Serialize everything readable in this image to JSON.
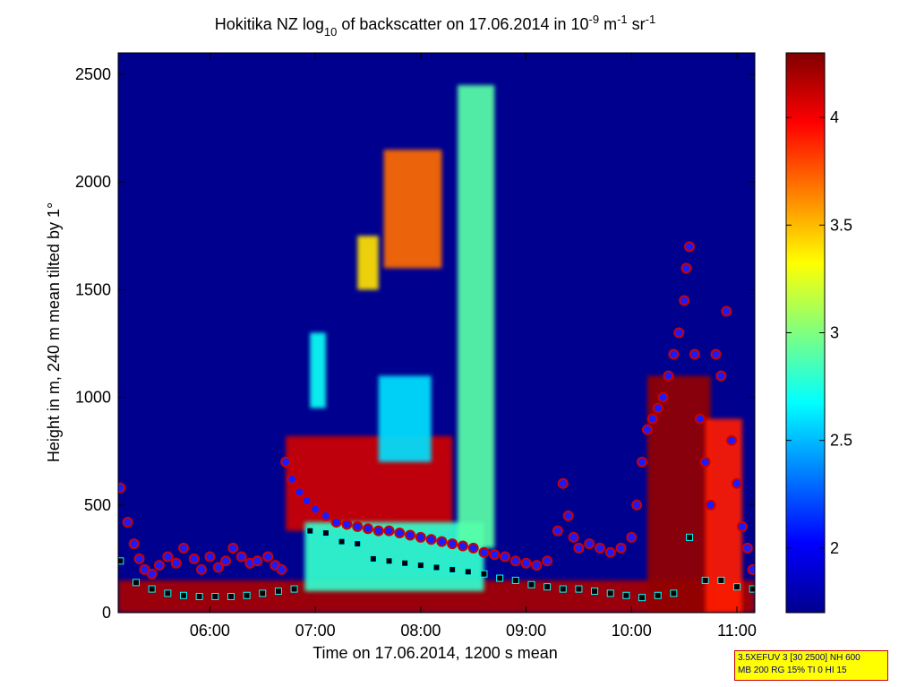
{
  "chart_data": {
    "type": "heatmap",
    "title": {
      "prefix": "Hokitika NZ log",
      "sub": "10",
      "mid": " of backscatter on 17.06.2014 in 10",
      "sup1": "-9",
      "unit1": " m",
      "sup2": "-1",
      "unit2": " sr",
      "sup3": "-1"
    },
    "xlabel": "Time on 17.06.2014, 1200 s mean",
    "ylabel": "Height in m, 240 m mean tilted by 1°",
    "x_ticks": [
      "06:00",
      "07:00",
      "08:00",
      "09:00",
      "10:00",
      "11:00"
    ],
    "x_tick_hours": [
      6,
      7,
      8,
      9,
      10,
      11
    ],
    "xlim_hours": [
      5.13,
      11.17
    ],
    "y_ticks": [
      "0",
      "500",
      "1000",
      "1500",
      "2000",
      "2500"
    ],
    "y_tick_values": [
      0,
      500,
      1000,
      1500,
      2000,
      2500
    ],
    "ylim": [
      0,
      2600
    ],
    "colorbar": {
      "ticks": [
        "2",
        "2.5",
        "3",
        "3.5",
        "4"
      ],
      "tick_values": [
        2,
        2.5,
        3,
        3.5,
        4
      ],
      "range": [
        1.7,
        4.3
      ],
      "colormap": "jet"
    },
    "background_value": 1.75,
    "features": [
      {
        "kind": "surface_layer",
        "t": [
          5.13,
          11.17
        ],
        "h": [
          0,
          150
        ],
        "value": 4.2
      },
      {
        "kind": "blob",
        "t": [
          6.72,
          8.3
        ],
        "h": [
          380,
          820
        ],
        "value": 4.1
      },
      {
        "kind": "blob",
        "t": [
          6.9,
          8.6
        ],
        "h": [
          100,
          420
        ],
        "value": 2.8
      },
      {
        "kind": "column",
        "t": [
          8.35,
          8.7
        ],
        "h": [
          300,
          2450
        ],
        "value": 2.9
      },
      {
        "kind": "column",
        "t": [
          7.65,
          8.2
        ],
        "h": [
          1600,
          2150
        ],
        "value": 3.7
      },
      {
        "kind": "column",
        "t": [
          7.4,
          7.6
        ],
        "h": [
          1500,
          1750
        ],
        "value": 3.4
      },
      {
        "kind": "column",
        "t": [
          6.95,
          7.1
        ],
        "h": [
          950,
          1300
        ],
        "value": 2.7
      },
      {
        "kind": "column",
        "t": [
          7.6,
          8.1
        ],
        "h": [
          700,
          1100
        ],
        "value": 2.6
      },
      {
        "kind": "plume",
        "t": [
          10.15,
          10.75
        ],
        "h": [
          0,
          1100
        ],
        "value": 4.25
      },
      {
        "kind": "plume",
        "t": [
          10.7,
          11.05
        ],
        "h": [
          0,
          900
        ],
        "value": 3.9
      }
    ],
    "series": [
      {
        "marker": "circle",
        "t": [
          5.15,
          5.22,
          5.28,
          5.33,
          5.38,
          5.45,
          5.52,
          5.6,
          5.68,
          5.75,
          5.85,
          5.92,
          6.0,
          6.08,
          6.15,
          6.22,
          6.3,
          6.38,
          6.45,
          6.55,
          6.62,
          6.68,
          6.72,
          6.78,
          6.85,
          6.92,
          7.0,
          7.1,
          7.2,
          7.3,
          7.4,
          7.5,
          7.6,
          7.7,
          7.8,
          7.9,
          8.0,
          8.1,
          8.2,
          8.3,
          8.4,
          8.5,
          8.6,
          8.7,
          8.8,
          8.9,
          9.0,
          9.1,
          9.2,
          9.3,
          9.35,
          9.4,
          9.45,
          9.5,
          9.6,
          9.7,
          9.8,
          9.9,
          10.0,
          10.05,
          10.1,
          10.15,
          10.2,
          10.25,
          10.3,
          10.35,
          10.4,
          10.45,
          10.5,
          10.52,
          10.55,
          10.6,
          10.65,
          10.7,
          10.75,
          10.8,
          10.85,
          10.9,
          10.95,
          11.0,
          11.05,
          11.1,
          11.15
        ],
        "h": [
          580,
          420,
          320,
          250,
          200,
          180,
          220,
          260,
          230,
          300,
          250,
          200,
          260,
          210,
          240,
          300,
          260,
          230,
          240,
          260,
          220,
          200,
          700,
          620,
          560,
          520,
          480,
          450,
          420,
          410,
          400,
          390,
          380,
          380,
          370,
          360,
          350,
          340,
          330,
          320,
          310,
          300,
          280,
          270,
          260,
          240,
          230,
          220,
          240,
          380,
          600,
          450,
          350,
          300,
          320,
          300,
          280,
          300,
          350,
          500,
          700,
          850,
          900,
          950,
          1000,
          1100,
          1200,
          1300,
          1450,
          1600,
          1700,
          1200,
          900,
          700,
          500,
          1200,
          1100,
          1400,
          800,
          600,
          400,
          300,
          200
        ]
      },
      {
        "marker": "square",
        "t": [
          5.15,
          5.3,
          5.45,
          5.6,
          5.75,
          5.9,
          6.05,
          6.2,
          6.35,
          6.5,
          6.65,
          6.8,
          6.95,
          7.1,
          7.25,
          7.4,
          7.55,
          7.7,
          7.85,
          8.0,
          8.15,
          8.3,
          8.45,
          8.6,
          8.75,
          8.9,
          9.05,
          9.2,
          9.35,
          9.5,
          9.65,
          9.8,
          9.95,
          10.1,
          10.25,
          10.4,
          10.55,
          10.7,
          10.85,
          11.0,
          11.15
        ],
        "h": [
          240,
          140,
          110,
          90,
          80,
          75,
          75,
          75,
          80,
          90,
          100,
          110,
          380,
          370,
          330,
          320,
          250,
          240,
          230,
          220,
          210,
          200,
          190,
          180,
          160,
          150,
          130,
          120,
          110,
          110,
          100,
          90,
          80,
          70,
          80,
          90,
          350,
          150,
          150,
          120,
          110
        ]
      }
    ]
  },
  "info_box": {
    "line1": "3.5XEFUV 3 [30 2500] NH 600",
    "line2": "MB 200 RG 15% TI 0 HI 15"
  }
}
